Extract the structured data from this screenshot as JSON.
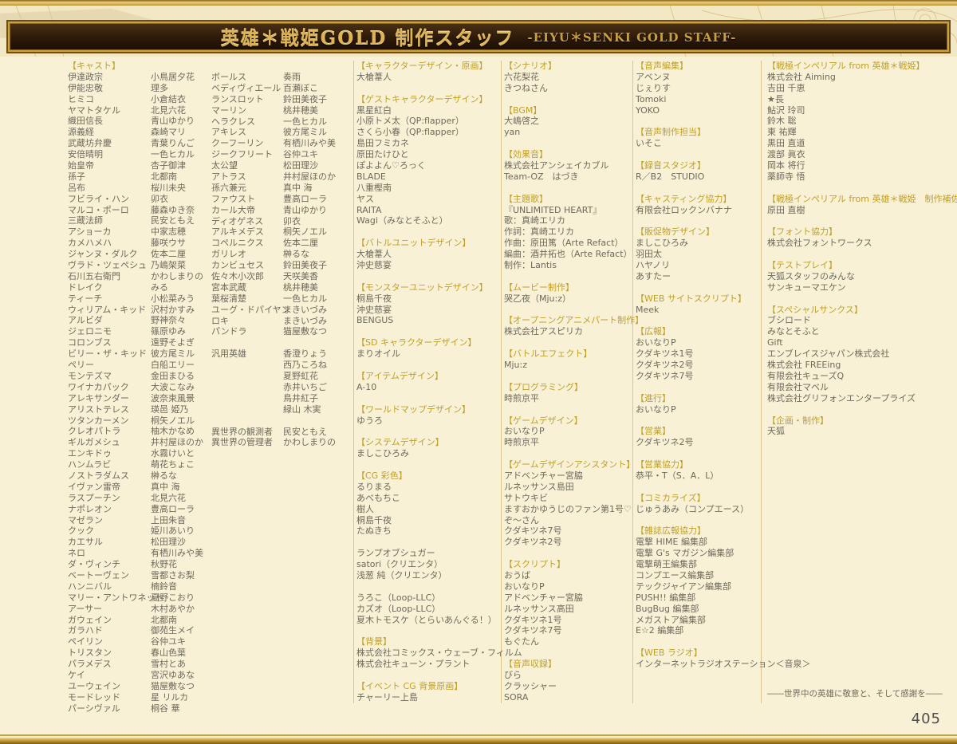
{
  "banner": {
    "title_jp": "英雄＊戦姫GOLD 制作スタッフ",
    "title_en": "-EIYU＊SENKI GOLD STAFF-"
  },
  "page_number": "405",
  "closing_line": "――世界中の英雄に敬意と、そして感謝を――",
  "colors": {
    "background": "#f8f1d6",
    "gold_frame": "#b98f2e",
    "banner_bg": "#2a1808",
    "banner_text": "#ddb355",
    "section_header": "#bfa02a",
    "body_text": "#6e6a5c",
    "separator": "#dcc58c"
  },
  "cast": {
    "header": "【キャスト】",
    "column1": [
      [
        "伊達政宗",
        "小鳥居夕花"
      ],
      [
        "伊能忠敬",
        "理多"
      ],
      [
        "ヒミコ",
        "小倉結衣"
      ],
      [
        "ヤマトタケル",
        "北見六花"
      ],
      [
        "織田信長",
        "青山ゆかり"
      ],
      [
        "源義経",
        "森崎マリ"
      ],
      [
        "武蔵坊弁慶",
        "青葉りんご"
      ],
      [
        "安倍晴明",
        "一色ヒカル"
      ],
      [
        "始皇帝",
        "杏子御津"
      ],
      [
        "孫子",
        "北都南"
      ],
      [
        "呂布",
        "桜川未央"
      ],
      [
        "フビライ・ハン",
        "卯衣"
      ],
      [
        "マルコ・ポーロ",
        "藤森ゆき奈"
      ],
      [
        "三蔵法師",
        "民安ともえ"
      ],
      [
        "アショーカ",
        "中家志穂"
      ],
      [
        "カメハメハ",
        "藤咲ウサ"
      ],
      [
        "ジャンヌ・ダルク",
        "佐本二厘"
      ],
      [
        "ヴラド・ツェペシュ",
        "乃嶋架菜"
      ],
      [
        "石川五右衛門",
        "かわしまりの"
      ],
      [
        "ドレイク",
        "みる"
      ],
      [
        "ティーチ",
        "小松菜みう"
      ],
      [
        "ウィリアム・キッド",
        "沢村かすみ"
      ],
      [
        "アルビダ",
        "野神奈々"
      ],
      [
        "ジェロニモ",
        "篠原ゆみ"
      ],
      [
        "コロンブス",
        "遠野そよぎ"
      ],
      [
        "ビリー・ザ・キッド",
        "彼方尾ミル"
      ],
      [
        "ペリー",
        "白船エリー"
      ],
      [
        "モンテズマ",
        "金田まひる"
      ],
      [
        "ワイナカパック",
        "大波こなみ"
      ],
      [
        "アレキサンダー",
        "波奈束風景"
      ],
      [
        "アリストテレス",
        "瑛邑 姫乃"
      ],
      [
        "ツタンカーメン",
        "桐矢ノエル"
      ],
      [
        "クレオパトラ",
        "柚木かなめ"
      ],
      [
        "ギルガメシュ",
        "井村屋ほのか"
      ],
      [
        "エンキドゥ",
        "水霧けいと"
      ],
      [
        "ハンムラビ",
        "萌花ちょこ"
      ],
      [
        "ノストラダムス",
        "榊るな"
      ],
      [
        "イヴァン雷帝",
        "真中 海"
      ],
      [
        "ラスプーチン",
        "北見六花"
      ],
      [
        "ナポレオン",
        "豊高ローラ"
      ],
      [
        "マゼラン",
        "上田朱音"
      ],
      [
        "クック",
        "姫川あいり"
      ],
      [
        "カエサル",
        "松田理沙"
      ],
      [
        "ネロ",
        "有栖川みや美"
      ],
      [
        "ダ・ヴィンチ",
        "秋野花"
      ],
      [
        "ベートーヴェン",
        "雪都さお梨"
      ],
      [
        "ハンニバル",
        "楠鈴音"
      ],
      [
        "マリー・アントワネット",
        "夏野こおり"
      ],
      [
        "アーサー",
        "木村あやか"
      ],
      [
        "ガウェイン",
        "北都南"
      ],
      [
        "ガラハド",
        "御苑生メイ"
      ],
      [
        "ペイリン",
        "谷仲ユキ"
      ],
      [
        "トリスタン",
        "春山色葉"
      ],
      [
        "パラメデス",
        "雪村とあ"
      ],
      [
        "ケイ",
        "宮沢ゆあな"
      ],
      [
        "ユーウェイン",
        "猫屋敷なつ"
      ],
      [
        "モードレッド",
        "星 リルカ"
      ],
      [
        "パーシヴァル",
        "桐谷 華"
      ]
    ],
    "column2": [
      [
        "ボールス",
        "奏雨"
      ],
      [
        "ベディヴィエール",
        "百瀬ぼこ"
      ],
      [
        "ランスロット",
        "鈴田美夜子"
      ],
      [
        "マーリン",
        "桃井穂美"
      ],
      [
        "ヘラクレス",
        "一色ヒカル"
      ],
      [
        "アキレス",
        "彼方尾ミル"
      ],
      [
        "クーフーリン",
        "有栖川みや美"
      ],
      [
        "ジークフリート",
        "谷仲ユキ"
      ],
      [
        "太公望",
        "松田理沙"
      ],
      [
        "アトラス",
        "井村屋ほのか"
      ],
      [
        "孫六兼元",
        "真中 海"
      ],
      [
        "ファウスト",
        "豊高ローラ"
      ],
      [
        "カール大帝",
        "青山ゆかり"
      ],
      [
        "ディオゲネス",
        "卯衣"
      ],
      [
        "アルキメデス",
        "桐矢ノエル"
      ],
      [
        "コペルニクス",
        "佐本二厘"
      ],
      [
        "ガリレオ",
        "榊るな"
      ],
      [
        "カンビュセス",
        "鈴田美夜子"
      ],
      [
        "佐々木小次郎",
        "天咲美香"
      ],
      [
        "宮本武蔵",
        "桃井穂美"
      ],
      [
        "葉桜清楚",
        "一色ヒカル"
      ],
      [
        "ユーグ・ドパイヤン",
        "まきいづみ"
      ],
      [
        "ロキ",
        "まきいづみ"
      ],
      [
        "パンドラ",
        "猫屋敷なつ"
      ],
      [
        "",
        ""
      ],
      [
        "汎用英雄",
        "香澄りょう"
      ],
      [
        "",
        "西乃ころね"
      ],
      [
        "",
        "夏野虹花"
      ],
      [
        "",
        "赤井いちご"
      ],
      [
        "",
        "鳥井紅子"
      ],
      [
        "",
        "緑山 木実"
      ],
      [
        "",
        ""
      ],
      [
        "異世界の観測者",
        "民安ともえ"
      ],
      [
        "異世界の管理者",
        "かわしまりの"
      ]
    ]
  },
  "credit_columns": {
    "design": [
      {
        "header": "【キャラクターデザイン・原画】",
        "lines": [
          "大槍葦人"
        ]
      },
      {
        "header": "【ゲストキャラクターデザイン】",
        "lines": [
          "黒星紅白",
          "小原トメ太（QP:flapper）",
          "さくら小春（QP:flapper）",
          "島田フミカネ",
          "原田たけひと",
          "ぽよよん♡ろっく",
          "BLADE",
          "八重樫南",
          "ヤス",
          "RAITA",
          "Wagi（みなとそふと）"
        ]
      },
      {
        "header": "【バトルユニットデザイン】",
        "lines": [
          "大槍葦人",
          "沖史慈宴"
        ]
      },
      {
        "header": "【モンスターユニットデザイン】",
        "lines": [
          "桐島千夜",
          "沖史慈宴",
          "BENGUS"
        ]
      },
      {
        "header": "【SD キャラクターデザイン】",
        "lines": [
          "まりオイル"
        ]
      },
      {
        "header": "【アイテムデザイン】",
        "lines": [
          "A-10"
        ]
      },
      {
        "header": "【ワールドマップデザイン】",
        "lines": [
          "ゆうろ"
        ]
      },
      {
        "header": "【システムデザイン】",
        "lines": [
          "ましこひろみ"
        ]
      },
      {
        "header": "【CG 彩色】",
        "lines": [
          "るりまる",
          "あべもちこ",
          "樹人",
          "桐島千夜",
          "たぬきち",
          "",
          "ランプオブシュガー",
          "satori（クリエンタ）",
          "浅葱 純（クリエンタ）",
          "",
          "うろこ（Loop-LLC）",
          "カズオ（Loop-LLC）",
          "夏木トモスケ（とらいあんぐる！）"
        ]
      },
      {
        "header": "【背景】",
        "lines": [
          "株式会社コミックス・ウェーブ・フィルム",
          "株式会社キューン・プラント"
        ]
      },
      {
        "header": "【イベント CG 背景原画】",
        "lines": [
          "チャーリー上島"
        ]
      }
    ],
    "scenario_sound": [
      {
        "header": "【シナリオ】",
        "lines": [
          "六花梨花",
          "きつねさん"
        ]
      },
      {
        "header": "【BGM】",
        "lines": [
          "大嶋啓之",
          "yan"
        ]
      },
      {
        "header": "【効果音】",
        "lines": [
          "株式会社アンシェイカブル",
          "Team-OZ　はづき"
        ]
      },
      {
        "header": "【主題歌】",
        "lines": [
          "『UNLIMITED HEART』",
          "歌：真崎エリカ",
          "作詞：真崎エリカ",
          "作曲：原田篤（Arte Refact）",
          "編曲：酒井拓也（Arte Refact）",
          "制作：Lantis"
        ]
      },
      {
        "header": "【ムービー制作】",
        "lines": [
          "哭乙夜（Mju:z）"
        ]
      },
      {
        "header": "【オープニングアニメパート制作】",
        "lines": [
          "株式会社アスピリカ"
        ]
      },
      {
        "header": "【バトルエフェクト】",
        "lines": [
          "Mju:z"
        ]
      },
      {
        "header": "【プログラミング】",
        "lines": [
          "時煎京平"
        ]
      },
      {
        "header": "【ゲームデザイン】",
        "lines": [
          "おいなりP",
          "時煎京平"
        ]
      },
      {
        "header": "【ゲームデザインアシスタント】",
        "lines": [
          "アドベンチャー宮脇",
          "ルネッサンス島田",
          "サトウキビ",
          "ますおかゆうじのファン第1号♡",
          "ぞ〜さん",
          "クダキツネ7号",
          "クダキツネ2号"
        ]
      },
      {
        "header": "【スクリプト】",
        "lines": [
          "おうば",
          "おいなりP",
          "アドベンチャー宮脇",
          "ルネッサンス高田",
          "クダキツネ1号",
          "クダキツネ7号",
          "もぐたん"
        ]
      },
      {
        "header": "【音声収録】",
        "lines": [
          "びら",
          "クラッシャー",
          "SORA"
        ]
      }
    ],
    "production": [
      {
        "header": "【音声編集】",
        "lines": [
          "アベンヌ",
          "じぇりす",
          "Tomoki",
          "YOKO"
        ]
      },
      {
        "header": "【音声制作担当】",
        "lines": [
          "いそこ"
        ]
      },
      {
        "header": "【録音スタジオ】",
        "lines": [
          "R／B2　STUDIO"
        ]
      },
      {
        "header": "【キャスティング協力】",
        "lines": [
          "有限会社ロックンバナナ"
        ]
      },
      {
        "header": "【販促物デザイン】",
        "lines": [
          "ましこひろみ",
          "羽田太",
          "ハヤノリ",
          "あすたー"
        ]
      },
      {
        "header": "【WEB サイトスクリプト】",
        "lines": [
          "Meek"
        ]
      },
      {
        "header": "【広報】",
        "lines": [
          "おいなりP",
          "クダキツネ1号",
          "クダキツネ2号",
          "クダキツネ7号"
        ]
      },
      {
        "header": "【進行】",
        "lines": [
          "おいなりP"
        ]
      },
      {
        "header": "【営業】",
        "lines": [
          "クダキツネ2号"
        ]
      },
      {
        "header": "【営業協力】",
        "lines": [
          "恭平・T（S．A．L）"
        ]
      },
      {
        "header": "【コミカライズ】",
        "lines": [
          "じゅうあみ（コンプエース）"
        ]
      },
      {
        "header": "【雑誌広報協力】",
        "lines": [
          "電撃 HIME 編集部",
          "電撃 G's マガジン編集部",
          "電撃萌王編集部",
          "コンプエース編集部",
          "テックジャイアン編集部",
          "PUSH!! 編集部",
          "BugBug 編集部",
          "メガストア編集部",
          "E☆2 編集部"
        ]
      },
      {
        "header": "【WEB ラジオ】",
        "lines": [
          "インターネットラジオステーション＜音泉＞"
        ]
      }
    ],
    "cooperation": [
      {
        "header": "【戦極インペリアル from 英雄＊戦姫】",
        "lines": [
          "株式会社 Aiming",
          "吉田 千恵",
          "★長",
          "鮎沢 玲司",
          "鈴木 聡",
          "東 祐輝",
          "黒田 直道",
          "渡部 眞衣",
          "岡本 将行",
          "薬師寺 悟"
        ]
      },
      {
        "header": "【戦極インペリアル from 英雄＊戦姫　制作補佐】",
        "lines": [
          "原田 直樹"
        ]
      },
      {
        "header": "【フォント協力】",
        "lines": [
          "株式会社フォントワークス"
        ]
      },
      {
        "header": "【テストプレイ】",
        "lines": [
          "天狐スタッフのみんな",
          "サンキューマエケン"
        ]
      },
      {
        "header": "【スペシャルサンクス】",
        "lines": [
          "ブシロード",
          "みなとそふと",
          "Gift",
          "エンブレイスジャパン株式会社",
          "株式会社 FREEing",
          "有限会社キューズQ",
          "有限会社マベル",
          "株式会社グリフォンエンタープライズ"
        ]
      },
      {
        "header": "【企画・制作】",
        "lines": [
          "天狐"
        ]
      }
    ]
  }
}
